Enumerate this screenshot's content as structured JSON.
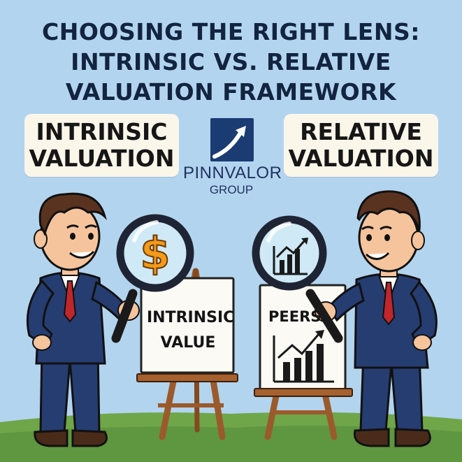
{
  "title": {
    "line1": "CHOOSING THE RIGHT LENS:",
    "line2": "INTRINSIC VS. RELATIVE",
    "line3": "VALUATION FRAMEWORK"
  },
  "left_label": {
    "line1": "INTRINSIC",
    "line2": "VALUATION"
  },
  "right_label": {
    "line1": "RELATIVE",
    "line2": "VALUATION"
  },
  "logo": {
    "name": "PINNVALOR",
    "sub": "GROUP"
  },
  "left_board": {
    "line1": "INTRINSIC",
    "line2": "VALUE"
  },
  "right_board": {
    "text": "PEERS"
  },
  "left_lens_symbol": "$",
  "colors": {
    "sky": "#b3d4ef",
    "grass": "#6fa64a",
    "suit": "#263d72",
    "tie": "#c0262c",
    "title_text": "#12243f",
    "label_bg": "#fbf6ea",
    "logo_bg": "#1b3b73"
  },
  "icons": [
    "logo-arrow-icon",
    "magnifying-glass-icon",
    "dollar-icon",
    "bar-chart-icon"
  ]
}
